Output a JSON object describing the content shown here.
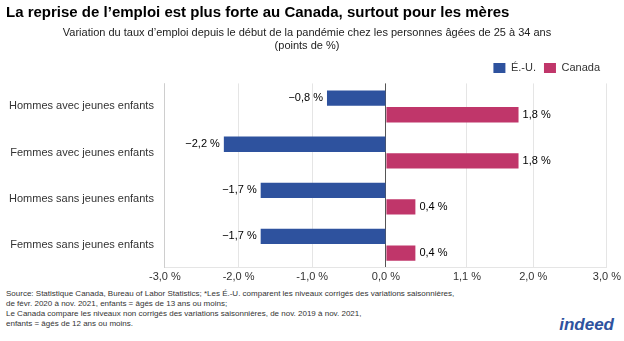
{
  "chart_data": {
    "type": "bar",
    "orientation": "horizontal",
    "title": "La reprise de l’emploi est plus forte au Canada, surtout pour les mères",
    "subtitle": "Variation du taux d’emploi depuis le début de la pandémie chez les personnes âgées de 25 à 34 ans\n(points de %)",
    "footnote": "Source: Statistique Canada, Bureau of Labor Statistics; *Les É.-U. comparent les niveaux corrigés des variations saisonnières,\nde févr. 2020 à nov. 2021, enfants = âgés de 13 ans ou moins;\nLe Canada compare les niveaux non corrigés des variations saisonnières, de nov. 2019 à nov. 2021,\nenfants = âgés de 12 ans ou moins.",
    "annotations": [
      "indeed"
    ],
    "categories": [
      "Femmes sans jeunes enfants",
      "Hommes sans jeunes enfants",
      "Femmes avec jeunes enfants",
      "Hommes avec jeunes enfants"
    ],
    "series": [
      {
        "name": "É.-U.",
        "color": "#2e529e",
        "values": [
          -1.7,
          -1.7,
          -2.2,
          -0.8
        ],
        "value_labels": [
          "−1,7 %",
          "−1,7 %",
          "−2,2 %",
          "−0,8 %"
        ]
      },
      {
        "name": "Canada",
        "color": "#c0366a",
        "values": [
          0.4,
          0.4,
          1.8,
          1.8
        ],
        "value_labels": [
          "0,4 %",
          "0,4 %",
          "1,8 %",
          "1,8 %"
        ]
      }
    ],
    "xlim": [
      -3.0,
      3.0
    ],
    "xticks": [
      {
        "value": -3.0,
        "label": "-3,0 %"
      },
      {
        "value": -2.0,
        "label": "-2,0 %"
      },
      {
        "value": -1.0,
        "label": "-1,0 %"
      },
      {
        "value": 0.0,
        "label": "0,0 %"
      },
      {
        "value": 1.1,
        "label": "1,1 %"
      },
      {
        "value": 2.0,
        "label": "2,0 %"
      },
      {
        "value": 3.0,
        "label": "3,0 %"
      }
    ],
    "grid": true,
    "legend": "top",
    "data_labels": true
  }
}
